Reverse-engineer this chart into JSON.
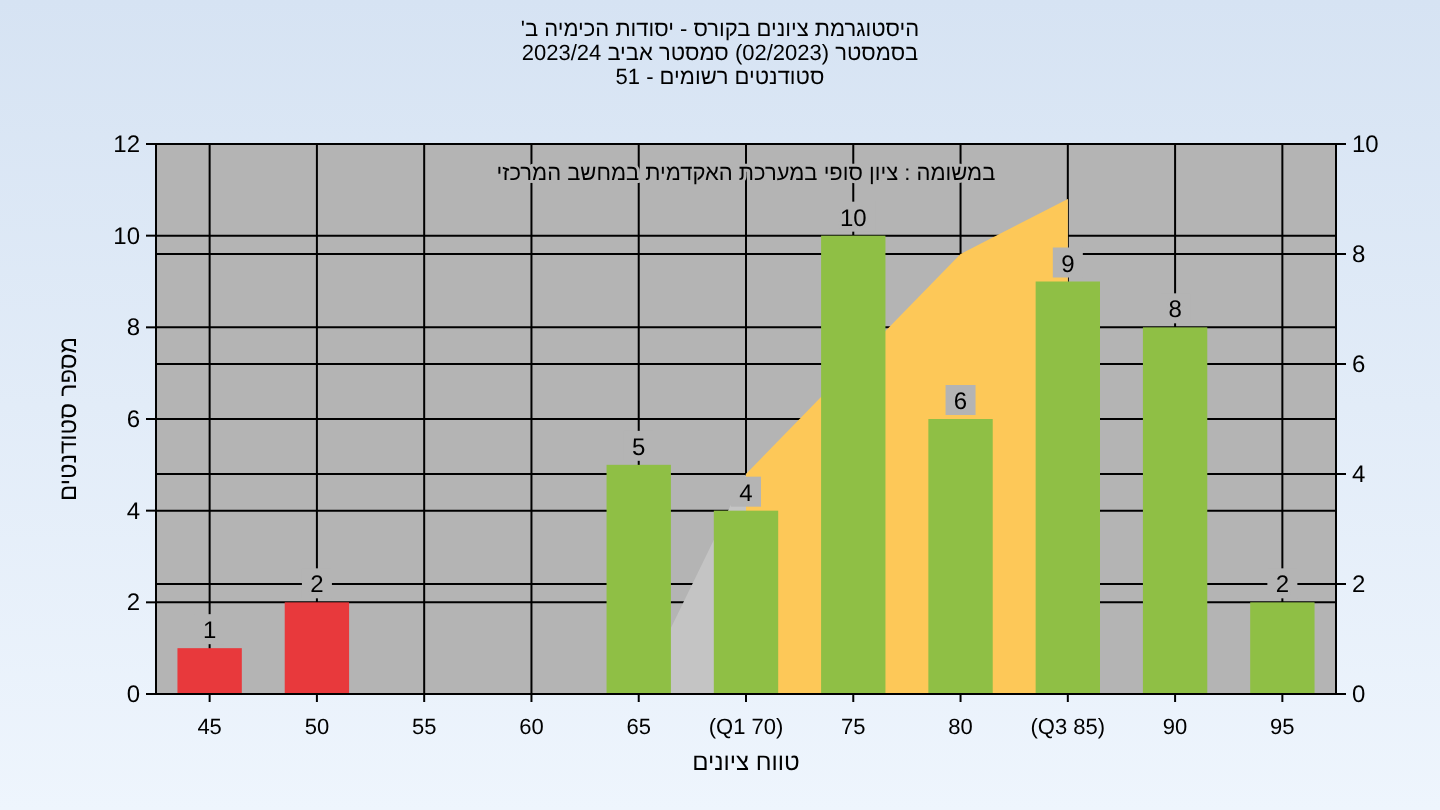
{
  "chart_data": {
    "type": "bar",
    "title": "היסטוגרמת ציונים בקורס - יסודות הכימיה ב'\nבסמסטר  (02/2023)  סמסטר אביב 2023/24\nסטודנטים רשומים - 51",
    "xlabel": "טווח ציונים",
    "ylabel": "מספר סטודנטים",
    "annotations": [
      "במשומה : ציון סופי במערכת האקדמית במחשב המרכזי"
    ],
    "categories": [
      "45",
      "50",
      "55",
      "60",
      "65",
      "(Q1 70)",
      "75",
      "80",
      "(Q3 85)",
      "90",
      "95"
    ],
    "series": [
      {
        "type": "area",
        "axis": "y2",
        "color": "#c4c4c4",
        "values": [
          null,
          null,
          null,
          null,
          0,
          4,
          null,
          null,
          9,
          null,
          null
        ]
      },
      {
        "type": "area",
        "axis": "y2",
        "color": "#fdc858",
        "values": [
          null,
          null,
          null,
          null,
          null,
          4,
          null,
          8,
          9,
          null,
          null
        ]
      },
      {
        "colors": [
          "#e8393c",
          "#e8393c",
          "#8fbf45",
          "#8fbf45",
          "#8fbf45",
          "#8fbf45",
          "#8fbf45",
          "#8fbf45",
          "#8fbf45",
          "#8fbf45",
          "#8fbf45"
        ],
        "values": [
          1,
          2,
          0,
          0,
          5,
          4,
          10,
          6,
          9,
          8,
          2
        ],
        "value_labels": [
          "1",
          "2",
          null,
          null,
          "5",
          "4",
          "10",
          "6",
          "9",
          "8",
          "2"
        ]
      }
    ],
    "ylim": [
      0,
      12
    ],
    "yticks": [
      0,
      2,
      4,
      6,
      8,
      10,
      12
    ],
    "y2lim": [
      0,
      10
    ],
    "y2ticks": [
      0,
      2,
      4,
      6,
      8,
      10
    ],
    "grid": true
  }
}
